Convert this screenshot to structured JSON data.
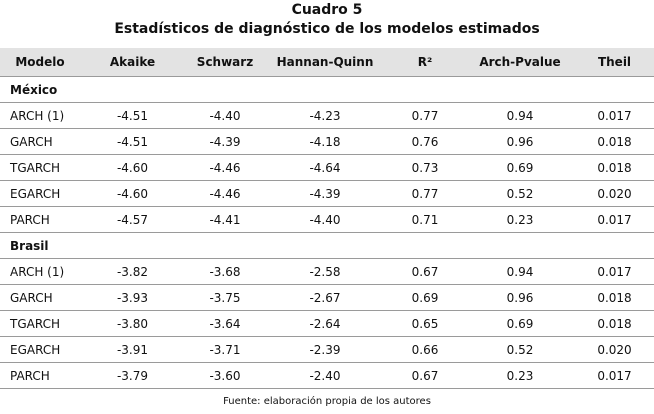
{
  "header": {
    "title": "Cuadro 5",
    "subtitle": "Estadísticos de diagnóstico de los modelos estimados"
  },
  "table": {
    "columns": [
      "Modelo",
      "Akaike",
      "Schwarz",
      "Hannan-Quinn",
      "R²",
      "Arch-Pvalue",
      "Theil"
    ],
    "groups": [
      {
        "name": "México",
        "rows": [
          [
            "ARCH (1)",
            "-4.51",
            "-4.40",
            "-4.23",
            "0.77",
            "0.94",
            "0.017"
          ],
          [
            "GARCH",
            "-4.51",
            "-4.39",
            "-4.18",
            "0.76",
            "0.96",
            "0.018"
          ],
          [
            "TGARCH",
            "-4.60",
            "-4.46",
            "-4.64",
            "0.73",
            "0.69",
            "0.018"
          ],
          [
            "EGARCH",
            "-4.60",
            "-4.46",
            "-4.39",
            "0.77",
            "0.52",
            "0.020"
          ],
          [
            "PARCH",
            "-4.57",
            "-4.41",
            "-4.40",
            "0.71",
            "0.23",
            "0.017"
          ]
        ]
      },
      {
        "name": "Brasil",
        "rows": [
          [
            "ARCH (1)",
            "-3.82",
            "-3.68",
            "-2.58",
            "0.67",
            "0.94",
            "0.017"
          ],
          [
            "GARCH",
            "-3.93",
            "-3.75",
            "-2.67",
            "0.69",
            "0.96",
            "0.018"
          ],
          [
            "TGARCH",
            "-3.80",
            "-3.64",
            "-2.64",
            "0.65",
            "0.69",
            "0.018"
          ],
          [
            "EGARCH",
            "-3.91",
            "-3.71",
            "-2.39",
            "0.66",
            "0.52",
            "0.020"
          ],
          [
            "PARCH",
            "-3.79",
            "-3.60",
            "-2.40",
            "0.67",
            "0.23",
            "0.017"
          ]
        ]
      }
    ]
  },
  "footnote": "Fuente: elaboración propia de los autores"
}
